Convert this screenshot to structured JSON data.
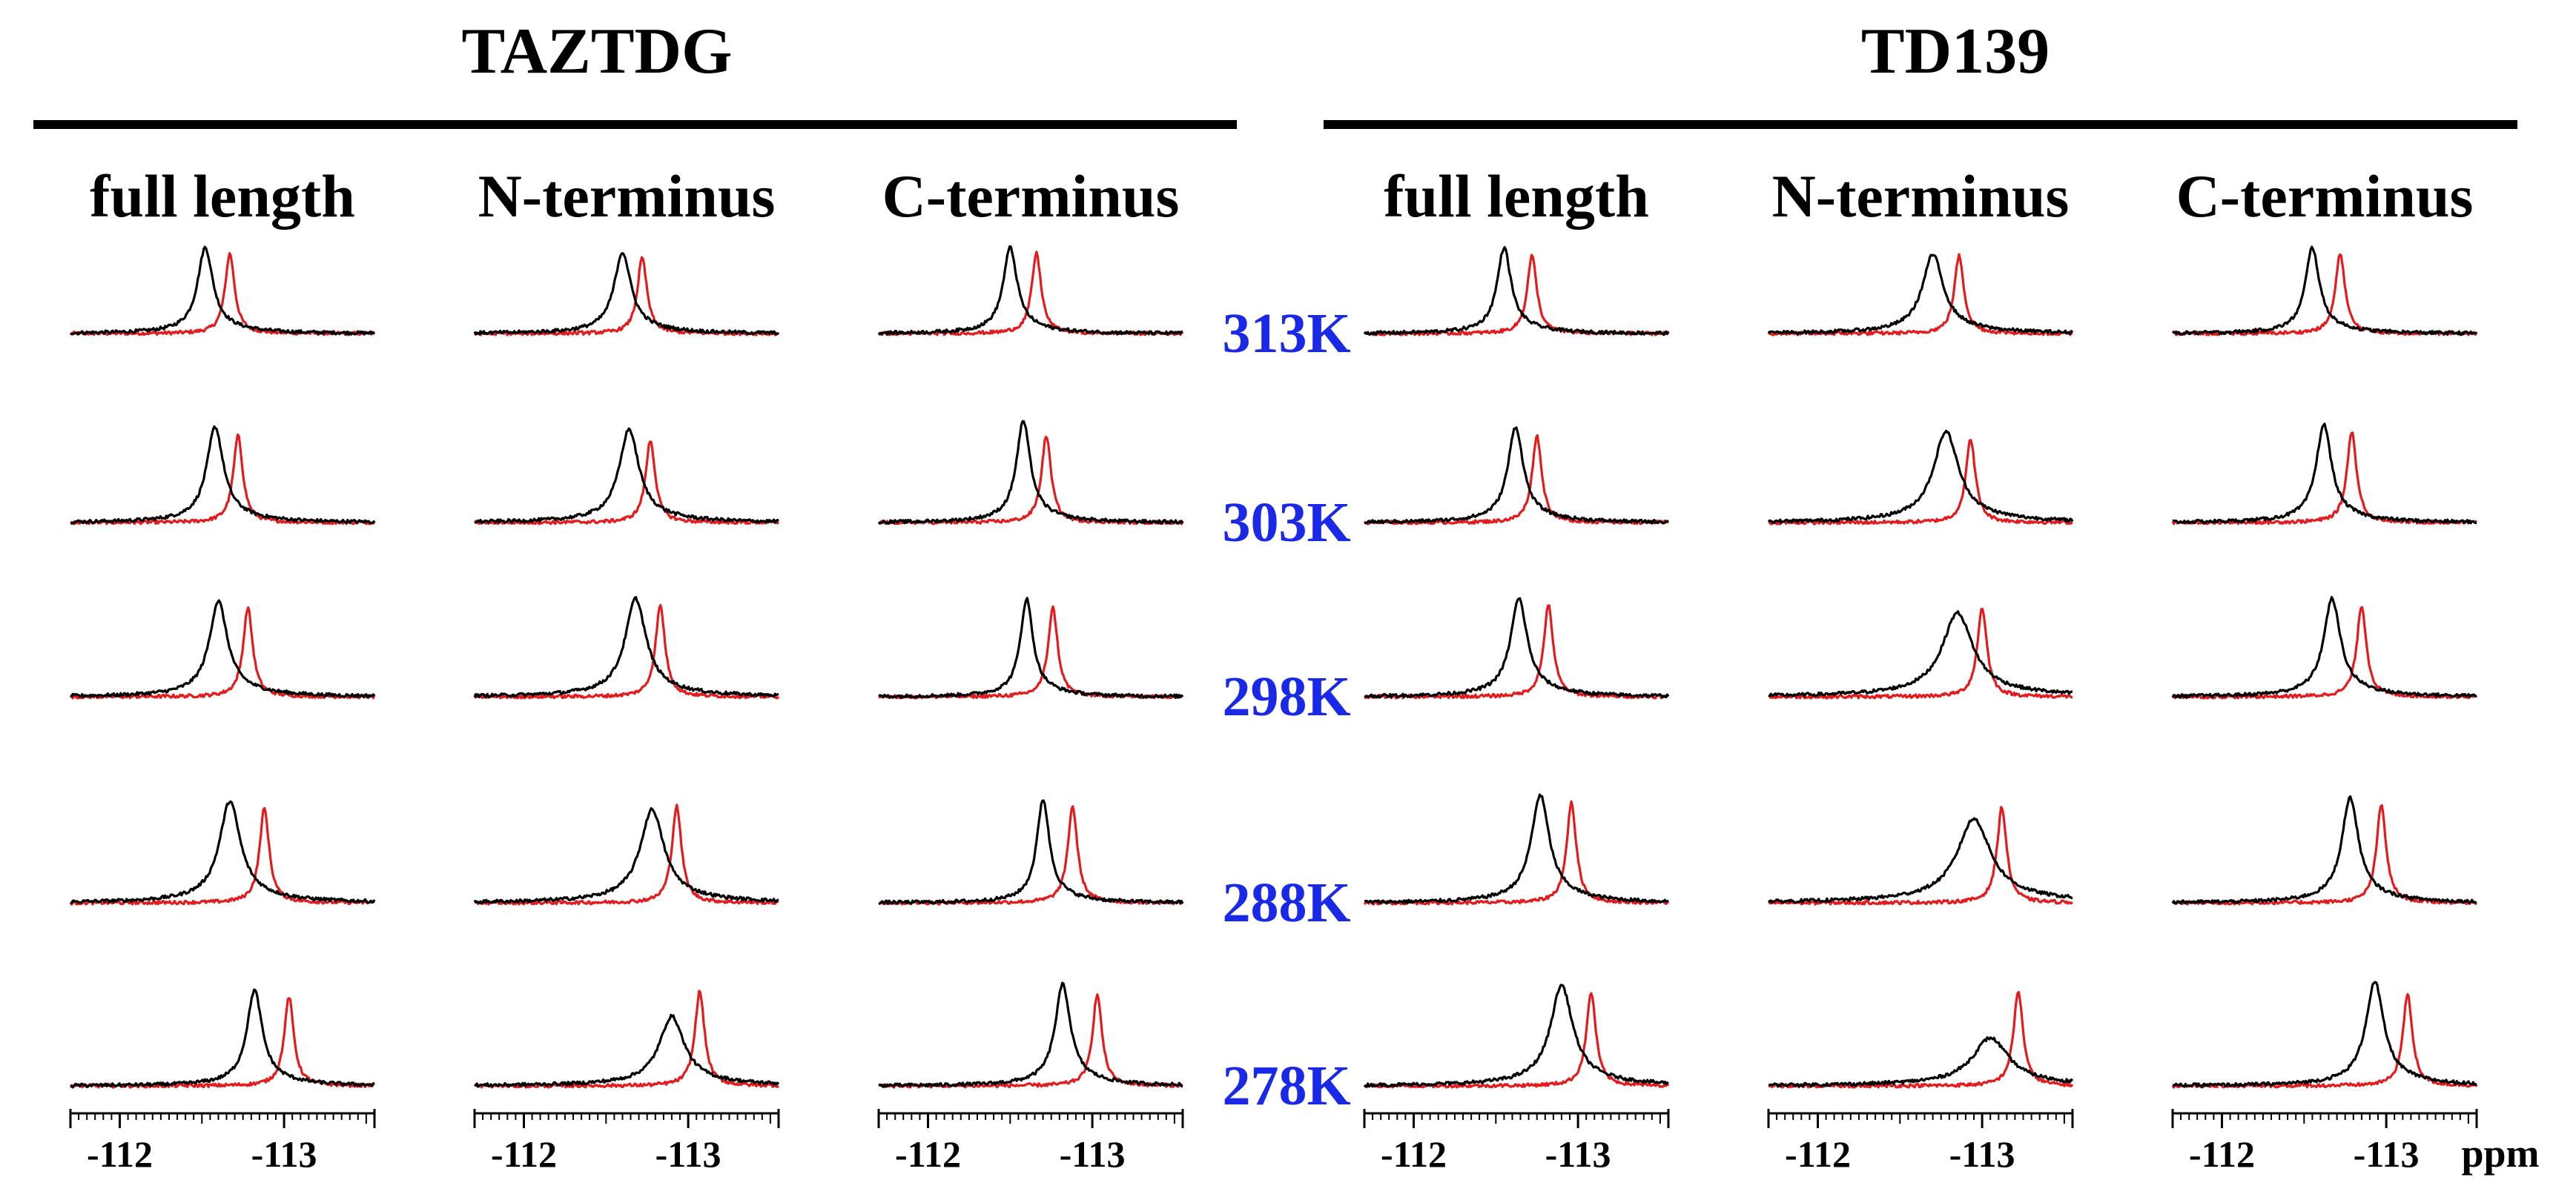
{
  "colors": {
    "temperature_label": "#1a29e8",
    "series_black": "#000000",
    "series_red": "#e41a1c",
    "rule": "#000000"
  },
  "chart_data": {
    "type": "line",
    "title": "",
    "xlabel": "ppm",
    "ylabel": "",
    "xlim": [
      -111.7,
      -113.55
    ],
    "x_reversed": true,
    "grid": false,
    "groups": [
      {
        "name": "TAZTDG",
        "panels": [
          "full length",
          "N-terminus",
          "C-terminus"
        ]
      },
      {
        "name": "TD139",
        "panels": [
          "full length",
          "N-terminus",
          "C-terminus"
        ]
      }
    ],
    "temperatures": [
      "313K",
      "303K",
      "298K",
      "288K",
      "278K"
    ],
    "ticks": [
      {
        "value": -112,
        "label": "-112"
      },
      {
        "value": -113,
        "label": "-113"
      }
    ],
    "series": [
      {
        "name": "black",
        "description": "bound sample spectrum (broad peak)"
      },
      {
        "name": "red",
        "description": "reference spectrum (narrow peak)"
      }
    ],
    "peaks": [
      {
        "group": "TAZTDG",
        "panel": "full length",
        "temp": "313K",
        "black_center": -112.52,
        "black_height": 0.72,
        "black_width": 0.055,
        "red_center": -112.67,
        "red_height": 0.72,
        "red_width": 0.035
      },
      {
        "group": "TAZTDG",
        "panel": "full length",
        "temp": "303K",
        "black_center": -112.58,
        "black_height": 0.8,
        "black_width": 0.06,
        "red_center": -112.72,
        "red_height": 0.78,
        "red_width": 0.035
      },
      {
        "group": "TAZTDG",
        "panel": "full length",
        "temp": "298K",
        "black_center": -112.6,
        "black_height": 0.8,
        "black_width": 0.065,
        "red_center": -112.78,
        "red_height": 0.8,
        "red_width": 0.035
      },
      {
        "group": "TAZTDG",
        "panel": "full length",
        "temp": "288K",
        "black_center": -112.67,
        "black_height": 0.85,
        "black_width": 0.075,
        "red_center": -112.88,
        "red_height": 0.85,
        "red_width": 0.035
      },
      {
        "group": "TAZTDG",
        "panel": "full length",
        "temp": "278K",
        "black_center": -112.82,
        "black_height": 0.8,
        "black_width": 0.055,
        "red_center": -113.03,
        "red_height": 0.8,
        "red_width": 0.035
      },
      {
        "group": "TAZTDG",
        "panel": "N-terminus",
        "temp": "313K",
        "black_center": -112.6,
        "black_height": 0.68,
        "black_width": 0.06,
        "red_center": -112.72,
        "red_height": 0.68,
        "red_width": 0.035
      },
      {
        "group": "TAZTDG",
        "panel": "N-terminus",
        "temp": "303K",
        "black_center": -112.64,
        "black_height": 0.78,
        "black_width": 0.07,
        "red_center": -112.77,
        "red_height": 0.74,
        "red_width": 0.035
      },
      {
        "group": "TAZTDG",
        "panel": "N-terminus",
        "temp": "298K",
        "black_center": -112.68,
        "black_height": 0.82,
        "black_width": 0.075,
        "red_center": -112.83,
        "red_height": 0.82,
        "red_width": 0.035
      },
      {
        "group": "TAZTDG",
        "panel": "N-terminus",
        "temp": "288K",
        "black_center": -112.78,
        "black_height": 0.78,
        "black_width": 0.085,
        "red_center": -112.93,
        "red_height": 0.87,
        "red_width": 0.035
      },
      {
        "group": "TAZTDG",
        "panel": "N-terminus",
        "temp": "278K",
        "black_center": -112.9,
        "black_height": 0.58,
        "black_width": 0.09,
        "red_center": -113.07,
        "red_height": 0.85,
        "red_width": 0.035
      },
      {
        "group": "TAZTDG",
        "panel": "C-terminus",
        "temp": "313K",
        "black_center": -112.5,
        "black_height": 0.72,
        "black_width": 0.05,
        "red_center": -112.66,
        "red_height": 0.72,
        "red_width": 0.035
      },
      {
        "group": "TAZTDG",
        "panel": "C-terminus",
        "temp": "303K",
        "black_center": -112.58,
        "black_height": 0.85,
        "black_width": 0.05,
        "red_center": -112.72,
        "red_height": 0.78,
        "red_width": 0.035
      },
      {
        "group": "TAZTDG",
        "panel": "C-terminus",
        "temp": "298K",
        "black_center": -112.6,
        "black_height": 0.82,
        "black_width": 0.045,
        "red_center": -112.76,
        "red_height": 0.8,
        "red_width": 0.035
      },
      {
        "group": "TAZTDG",
        "panel": "C-terminus",
        "temp": "288K",
        "black_center": -112.7,
        "black_height": 0.87,
        "black_width": 0.045,
        "red_center": -112.88,
        "red_height": 0.87,
        "red_width": 0.035
      },
      {
        "group": "TAZTDG",
        "panel": "C-terminus",
        "temp": "278K",
        "black_center": -112.82,
        "black_height": 0.85,
        "black_width": 0.055,
        "red_center": -113.03,
        "red_height": 0.82,
        "red_width": 0.035
      },
      {
        "group": "TD139",
        "panel": "full length",
        "temp": "313K",
        "black_center": -112.55,
        "black_height": 0.72,
        "black_width": 0.05,
        "red_center": -112.72,
        "red_height": 0.7,
        "red_width": 0.035
      },
      {
        "group": "TD139",
        "panel": "full length",
        "temp": "303K",
        "black_center": -112.62,
        "black_height": 0.8,
        "black_width": 0.055,
        "red_center": -112.75,
        "red_height": 0.78,
        "red_width": 0.035
      },
      {
        "group": "TD139",
        "panel": "full length",
        "temp": "298K",
        "black_center": -112.64,
        "black_height": 0.82,
        "black_width": 0.06,
        "red_center": -112.82,
        "red_height": 0.82,
        "red_width": 0.035
      },
      {
        "group": "TD139",
        "panel": "full length",
        "temp": "288K",
        "black_center": -112.77,
        "black_height": 0.9,
        "black_width": 0.065,
        "red_center": -112.96,
        "red_height": 0.9,
        "red_width": 0.035
      },
      {
        "group": "TD139",
        "panel": "full length",
        "temp": "278K",
        "black_center": -112.9,
        "black_height": 0.84,
        "black_width": 0.08,
        "red_center": -113.08,
        "red_height": 0.84,
        "red_width": 0.035
      },
      {
        "group": "TD139",
        "panel": "N-terminus",
        "temp": "313K",
        "black_center": -112.7,
        "black_height": 0.66,
        "black_width": 0.075,
        "red_center": -112.86,
        "red_height": 0.7,
        "red_width": 0.035
      },
      {
        "group": "TD139",
        "panel": "N-terminus",
        "temp": "303K",
        "black_center": -112.78,
        "black_height": 0.76,
        "black_width": 0.09,
        "red_center": -112.93,
        "red_height": 0.75,
        "red_width": 0.035
      },
      {
        "group": "TD139",
        "panel": "N-terminus",
        "temp": "298K",
        "black_center": -112.85,
        "black_height": 0.7,
        "black_width": 0.11,
        "red_center": -113.0,
        "red_height": 0.8,
        "red_width": 0.035
      },
      {
        "group": "TD139",
        "panel": "N-terminus",
        "temp": "288K",
        "black_center": -112.95,
        "black_height": 0.7,
        "black_width": 0.12,
        "red_center": -113.12,
        "red_height": 0.86,
        "red_width": 0.035
      },
      {
        "group": "TD139",
        "panel": "N-terminus",
        "temp": "278K",
        "black_center": -113.05,
        "black_height": 0.4,
        "black_width": 0.13,
        "red_center": -113.22,
        "red_height": 0.85,
        "red_width": 0.035
      },
      {
        "group": "TD139",
        "panel": "C-terminus",
        "temp": "313K",
        "black_center": -112.55,
        "black_height": 0.72,
        "black_width": 0.05,
        "red_center": -112.72,
        "red_height": 0.72,
        "red_width": 0.035
      },
      {
        "group": "TD139",
        "panel": "C-terminus",
        "temp": "303K",
        "black_center": -112.62,
        "black_height": 0.82,
        "black_width": 0.055,
        "red_center": -112.79,
        "red_height": 0.82,
        "red_width": 0.035
      },
      {
        "group": "TD139",
        "panel": "C-terminus",
        "temp": "298K",
        "black_center": -112.67,
        "black_height": 0.82,
        "black_width": 0.06,
        "red_center": -112.85,
        "red_height": 0.82,
        "red_width": 0.035
      },
      {
        "group": "TD139",
        "panel": "C-terminus",
        "temp": "288K",
        "black_center": -112.78,
        "black_height": 0.88,
        "black_width": 0.06,
        "red_center": -112.97,
        "red_height": 0.88,
        "red_width": 0.035
      },
      {
        "group": "TD139",
        "panel": "C-terminus",
        "temp": "278K",
        "black_center": -112.93,
        "black_height": 0.87,
        "black_width": 0.065,
        "red_center": -113.13,
        "red_height": 0.82,
        "red_width": 0.035
      }
    ]
  }
}
